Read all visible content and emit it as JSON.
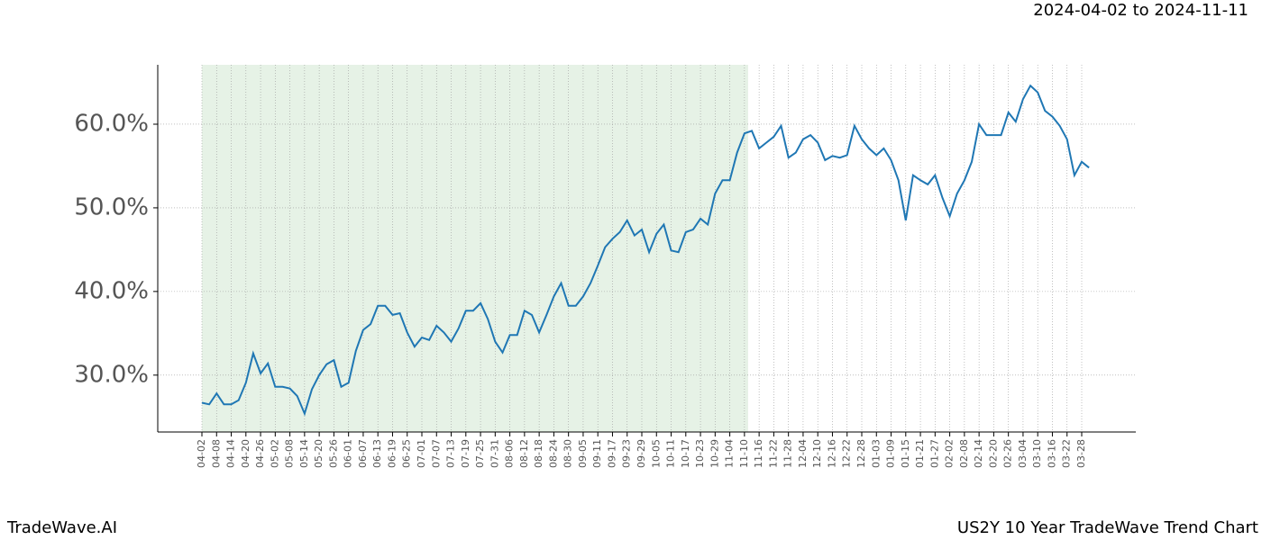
{
  "chart_data": {
    "type": "line",
    "subtitle": "2024-04-02 to 2024-11-11",
    "footer_left": "TradeWave.AI",
    "footer_right": "US2Y 10 Year TradeWave Trend Chart",
    "categories": [
      "04-02",
      null,
      "04-08",
      null,
      "04-14",
      null,
      "04-20",
      null,
      "04-26",
      null,
      "05-02",
      null,
      "05-08",
      null,
      "05-14",
      null,
      "05-20",
      null,
      "05-26",
      null,
      "06-01",
      null,
      "06-07",
      null,
      "06-13",
      null,
      "06-19",
      null,
      "06-25",
      null,
      "07-01",
      null,
      "07-07",
      null,
      "07-13",
      null,
      "07-19",
      null,
      "07-25",
      null,
      "07-31",
      null,
      "08-06",
      null,
      "08-12",
      null,
      "08-18",
      null,
      "08-24",
      null,
      "08-30",
      null,
      "09-05",
      null,
      "09-11",
      null,
      "09-17",
      null,
      "09-23",
      null,
      "09-29",
      null,
      "10-05",
      null,
      "10-11",
      null,
      "10-17",
      null,
      "10-23",
      null,
      "10-29",
      null,
      "11-04",
      null,
      "11-10",
      null,
      "11-16",
      null,
      "11-22",
      null,
      "11-28",
      null,
      "12-04",
      null,
      "12-10",
      null,
      "12-16",
      null,
      "12-22",
      null,
      "12-28",
      null,
      "01-03",
      null,
      "01-09",
      null,
      "01-15",
      null,
      "01-21",
      null,
      "01-27",
      null,
      "02-02",
      null,
      "02-08",
      null,
      "02-14",
      null,
      "02-20",
      null,
      "02-26",
      null,
      "03-04",
      null,
      "03-10",
      null,
      "03-16",
      null,
      "03-22",
      null,
      "03-28",
      null
    ],
    "series": [
      {
        "color": "#1f77b4",
        "values": [
          26.7,
          26.5,
          27.8,
          26.5,
          26.5,
          27,
          29.1,
          32.6,
          30.2,
          31.4,
          28.6,
          28.6,
          28.4,
          27.5,
          25.4,
          28.3,
          30,
          31.3,
          31.8,
          28.6,
          29.1,
          32.9,
          35.4,
          36.1,
          38.3,
          38.3,
          37.2,
          37.4,
          35.1,
          33.4,
          34.5,
          34.2,
          35.9,
          35.1,
          34,
          35.6,
          37.7,
          37.7,
          38.6,
          36.7,
          34,
          32.7,
          34.8,
          34.8,
          37.7,
          37.2,
          35.1,
          37.2,
          39.4,
          41,
          38.3,
          38.3,
          39.4,
          41,
          43.1,
          45.3,
          46.3,
          47.1,
          48.5,
          46.7,
          47.4,
          44.7,
          46.9,
          48,
          44.9,
          44.7,
          47.1,
          47.4,
          48.7,
          48,
          51.7,
          53.3,
          53.3,
          56.6,
          58.9,
          59.2,
          57.1,
          57.8,
          58.5,
          59.8,
          56,
          56.6,
          58.2,
          58.7,
          57.8,
          55.7,
          56.2,
          56,
          56.3,
          59.8,
          58.2,
          57.1,
          56.3,
          57.1,
          55.7,
          53.3,
          48.5,
          53.9,
          53.3,
          52.8,
          53.9,
          51.2,
          49,
          51.7,
          53.3,
          55.5,
          60,
          58.7,
          58.7,
          58.7,
          61.4,
          60.3,
          63,
          64.6,
          63.8,
          61.6,
          60.9,
          59.8,
          58.2,
          53.9,
          55.5,
          54.8
        ]
      }
    ],
    "highlight": [
      0,
      74.5
    ],
    "highlight_color": "#e6f2e6",
    "ylim": [
      23.2,
      67.1
    ],
    "yticks": [
      {
        "value": 30,
        "label": "30.0%"
      },
      {
        "value": 40,
        "label": "40.0%"
      },
      {
        "value": 50,
        "label": "50.0%"
      },
      {
        "value": 60,
        "label": "60.0%"
      }
    ],
    "grid": true
  }
}
